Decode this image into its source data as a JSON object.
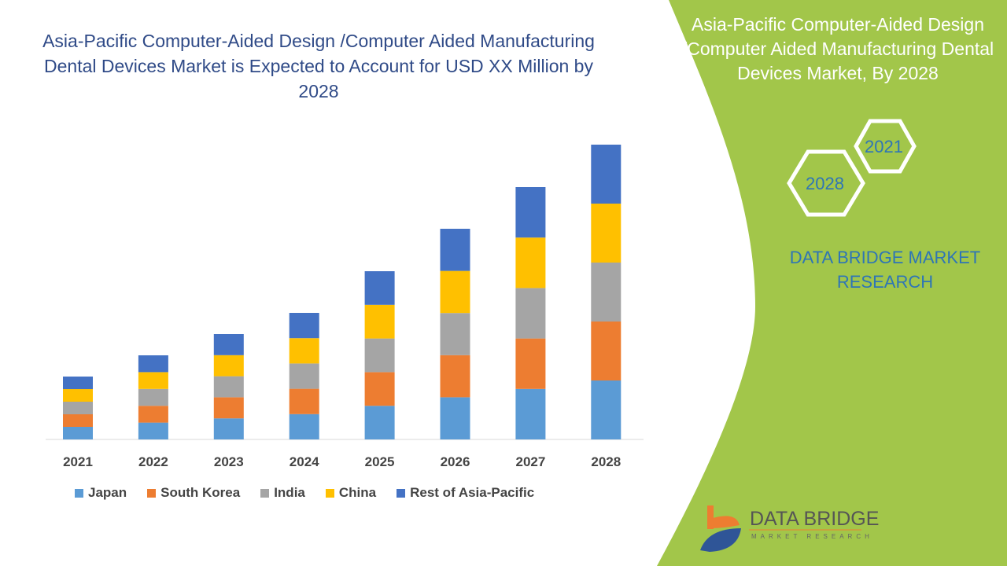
{
  "title": "Asia-Pacific Computer-Aided Design /Computer Aided Manufacturing Dental Devices Market is Expected to Account for USD XX Million by 2028",
  "side_panel": {
    "title": "Asia-Pacific Computer-Aided Design /Computer Aided Manufacturing Dental Devices Market, By 2028",
    "hex_years": [
      "2021",
      "2028"
    ],
    "brand_text": "DATA BRIDGE MARKET RESEARCH",
    "logo_text": "DATA BRIDGE",
    "logo_subtext": "MARKET RESEARCH",
    "color": "#a2c64a"
  },
  "chart_data": {
    "type": "bar",
    "stacked": true,
    "title": "Asia-Pacific Computer-Aided Design /Computer Aided Manufacturing Dental Devices Market is Expected to Account for USD XX Million by 2028",
    "xlabel": "",
    "ylabel": "",
    "categories": [
      "2021",
      "2022",
      "2023",
      "2024",
      "2025",
      "2026",
      "2027",
      "2028"
    ],
    "series": [
      {
        "name": "Japan",
        "color": "#5b9bd5",
        "values": [
          16,
          21.4,
          26.8,
          32.2,
          42.8,
          53.6,
          64.2,
          75
        ]
      },
      {
        "name": "South Korea",
        "color": "#ed7d31",
        "values": [
          16,
          21.4,
          26.8,
          32.2,
          42.8,
          53.6,
          64.2,
          75
        ]
      },
      {
        "name": "India",
        "color": "#a5a5a5",
        "values": [
          16,
          21.4,
          26.8,
          32.2,
          42.8,
          53.6,
          64.2,
          75
        ]
      },
      {
        "name": "China",
        "color": "#ffc000",
        "values": [
          16,
          21.4,
          26.8,
          32.2,
          42.8,
          53.6,
          64.2,
          75
        ]
      },
      {
        "name": "Rest of Asia-Pacific",
        "color": "#4472c4",
        "values": [
          16,
          21.4,
          26.8,
          32.2,
          42.8,
          53.6,
          64.2,
          75
        ]
      }
    ],
    "y_axis_visible": false,
    "grid": false,
    "legend": "bottom"
  }
}
